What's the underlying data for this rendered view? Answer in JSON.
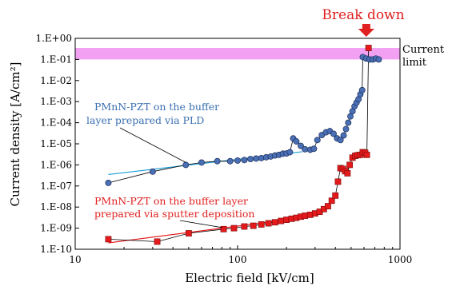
{
  "chart_data": {
    "type": "scatter",
    "xlabel": "Electric field [kV/cm]",
    "ylabel": "Current density [A/cm²]",
    "x_scale": "log",
    "y_scale": "log",
    "xlim": [
      10,
      1000
    ],
    "ylim": [
      1e-10,
      1
    ],
    "x_ticks": [
      "10",
      "100",
      "1000"
    ],
    "y_ticks": [
      "1.E-10",
      "1.E-09",
      "1.E-08",
      "1.E-07",
      "1.E-06",
      "1.E-05",
      "1.E-04",
      "1.E-03",
      "1.E-02",
      "1.E-01",
      "1.E+00"
    ],
    "grid": false,
    "current_limit": {
      "label_line1": "Current",
      "label_line2": "limit",
      "y_range": [
        0.1,
        0.35
      ],
      "color": "#ee82ee"
    },
    "breakdown": {
      "label": "Break down",
      "x": 620,
      "color": "#e02020"
    },
    "series": [
      {
        "name": "PMnN-PZT on the buffer layer prepared via PLD",
        "color": "#4a6fb5",
        "marker": "circle",
        "points": [
          [
            16,
            1.4e-07
          ],
          [
            30,
            4.8e-07
          ],
          [
            48,
            1e-06
          ],
          [
            60,
            1.3e-06
          ],
          [
            75,
            1.5e-06
          ],
          [
            90,
            1.5e-06
          ],
          [
            100,
            1.6e-06
          ],
          [
            110,
            1.7e-06
          ],
          [
            120,
            1.9e-06
          ],
          [
            130,
            2e-06
          ],
          [
            140,
            2.1e-06
          ],
          [
            150,
            2.3e-06
          ],
          [
            160,
            2.5e-06
          ],
          [
            170,
            2.8e-06
          ],
          [
            180,
            3e-06
          ],
          [
            190,
            3.4e-06
          ],
          [
            200,
            3.5e-06
          ],
          [
            210,
            4e-06
          ],
          [
            220,
            1.8e-05
          ],
          [
            230,
            1.3e-05
          ],
          [
            245,
            8e-06
          ],
          [
            260,
            5.5e-06
          ],
          [
            280,
            5.2e-06
          ],
          [
            295,
            5.8e-06
          ],
          [
            310,
            1.5e-05
          ],
          [
            330,
            2.6e-05
          ],
          [
            350,
            3.5e-05
          ],
          [
            370,
            4e-05
          ],
          [
            390,
            3e-05
          ],
          [
            410,
            1.8e-05
          ],
          [
            430,
            1.5e-05
          ],
          [
            450,
            2.5e-05
          ],
          [
            465,
            5e-05
          ],
          [
            480,
            0.0001
          ],
          [
            495,
            0.0002
          ],
          [
            510,
            0.00035
          ],
          [
            525,
            0.0006
          ],
          [
            540,
            0.0009
          ],
          [
            555,
            0.0013
          ],
          [
            570,
            0.0022
          ],
          [
            585,
            0.0035
          ],
          [
            590,
            0.13
          ],
          [
            620,
            0.11
          ],
          [
            650,
            0.1
          ],
          [
            680,
            0.1
          ],
          [
            710,
            0.11
          ],
          [
            740,
            0.1
          ]
        ]
      },
      {
        "name": "PMnN-PZT on the buffer layer prepared via sputter deposition",
        "color": "#e41a1c",
        "marker": "square",
        "points": [
          [
            16,
            3e-10
          ],
          [
            32,
            2.3e-10
          ],
          [
            50,
            5.7e-10
          ],
          [
            82,
            9e-10
          ],
          [
            95,
            1e-09
          ],
          [
            110,
            1.2e-09
          ],
          [
            125,
            1.3e-09
          ],
          [
            140,
            1.5e-09
          ],
          [
            155,
            1.7e-09
          ],
          [
            170,
            1.9e-09
          ],
          [
            185,
            2.2e-09
          ],
          [
            200,
            2.5e-09
          ],
          [
            215,
            2.8e-09
          ],
          [
            230,
            3.1e-09
          ],
          [
            245,
            3.5e-09
          ],
          [
            260,
            3.9e-09
          ],
          [
            280,
            4.3e-09
          ],
          [
            300,
            5e-09
          ],
          [
            320,
            6e-09
          ],
          [
            340,
            8e-09
          ],
          [
            360,
            1.1e-08
          ],
          [
            380,
            2e-08
          ],
          [
            400,
            3.5e-08
          ],
          [
            415,
            1.6e-07
          ],
          [
            430,
            7e-07
          ],
          [
            445,
            6.5e-07
          ],
          [
            460,
            5e-07
          ],
          [
            475,
            4e-07
          ],
          [
            490,
            1e-06
          ],
          [
            510,
            2.2e-06
          ],
          [
            530,
            2.7e-06
          ],
          [
            550,
            2.9e-06
          ],
          [
            570,
            3e-06
          ],
          [
            590,
            4e-06
          ],
          [
            610,
            3.8e-06
          ],
          [
            625,
            3e-06
          ],
          [
            640,
            0.35
          ]
        ]
      }
    ],
    "fit_lines": [
      {
        "color": "#1fa0d8",
        "from": [
          16,
          3.5e-07
        ],
        "to": [
          250,
          4.2e-06
        ]
      },
      {
        "color": "#e41a1c",
        "from": [
          16,
          2e-10
        ],
        "to": [
          200,
          2.5e-09
        ]
      }
    ],
    "annotations": [
      {
        "color": "#3a6fb0",
        "line1": "PMnN-PZT on the buffer",
        "line2": "layer prepared via PLD",
        "arrow_to": [
          48,
          1e-06
        ]
      },
      {
        "color": "#e02020",
        "line1": "PMnN-PZT on the buffer layer",
        "line2": "prepared via sputter deposition",
        "arrow_to": [
          82,
          9e-10
        ]
      }
    ]
  }
}
